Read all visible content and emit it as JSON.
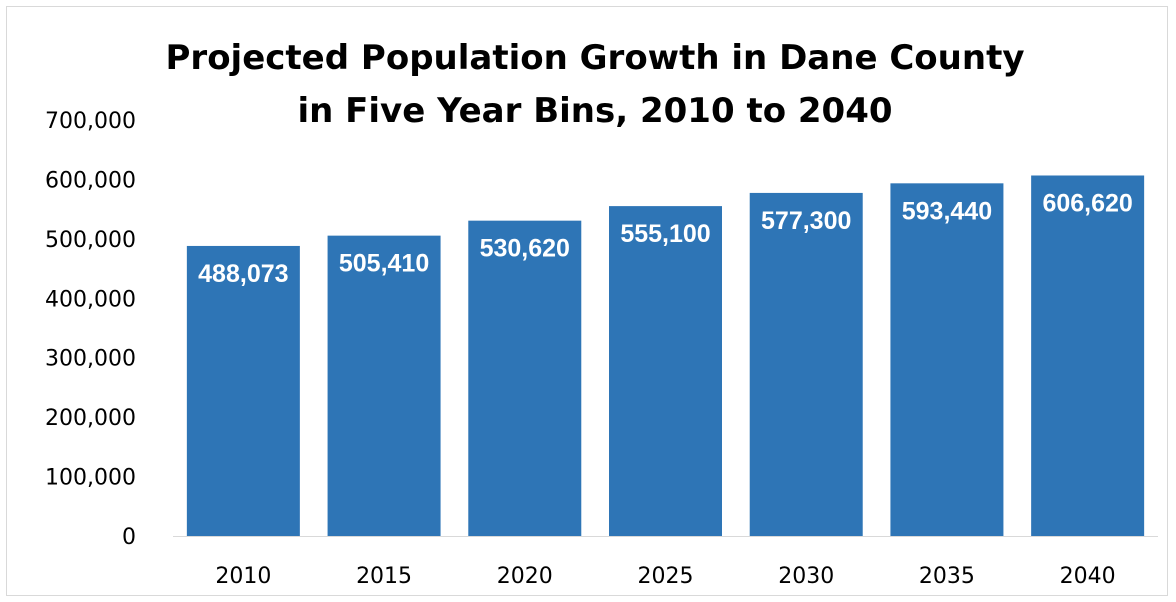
{
  "chart_data": {
    "type": "bar",
    "title": "Projected Population Growth in Dane County in Five Year Bins, 2010 to 2040",
    "categories": [
      "2010",
      "2015",
      "2020",
      "2025",
      "2030",
      "2035",
      "2040"
    ],
    "values": [
      488073,
      505410,
      530620,
      555100,
      577300,
      593440,
      606620
    ],
    "data_labels": [
      "488,073",
      "505,410",
      "530,620",
      "555,100",
      "577,300",
      "593,440",
      "606,620"
    ],
    "y_ticks": [
      "0",
      "100,000",
      "200,000",
      "300,000",
      "400,000",
      "500,000",
      "600,000",
      "700,000"
    ],
    "ylim": [
      0,
      700000
    ],
    "xlabel": "",
    "ylabel": "",
    "grid": false,
    "legend": "none",
    "bar_color": "#2e75b6"
  }
}
